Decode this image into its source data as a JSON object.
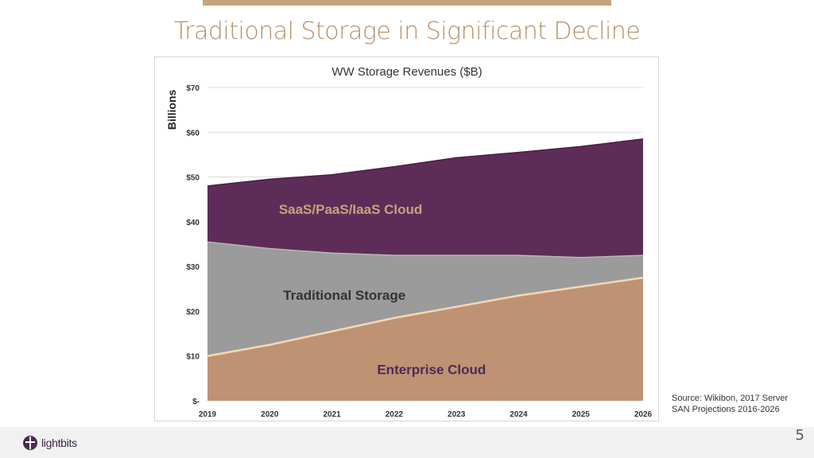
{
  "slide": {
    "title": "Traditional Storage in Significant Decline",
    "source_line1": "Source: Wikibon, 2017 Server",
    "source_line2": "SAN Projections 2016-2026",
    "page_number": "5",
    "logo_text": "lightbits"
  },
  "chart_data": {
    "type": "area",
    "stacked": true,
    "title": "WW Storage Revenues ($B)",
    "ylabel": "Billions",
    "xlabel": "",
    "x": [
      "2019",
      "2020",
      "2021",
      "2022",
      "2023",
      "2024",
      "2025",
      "2026"
    ],
    "ylim": [
      0,
      70
    ],
    "yticks": [
      0,
      10,
      20,
      30,
      40,
      50,
      60,
      70
    ],
    "ytick_labels": [
      "$-",
      "$10",
      "$20",
      "$30",
      "$40",
      "$50",
      "$60",
      "$70"
    ],
    "grid": true,
    "series": [
      {
        "name": "Enterprise Cloud",
        "values": [
          10,
          12.5,
          15.5,
          18.5,
          21,
          23.5,
          25.5,
          27.5
        ],
        "color": "#c09274",
        "label_color": "#4b2a55"
      },
      {
        "name": "Traditional Storage",
        "values": [
          25.5,
          21.5,
          17.5,
          14,
          11.5,
          9,
          6.5,
          5
        ],
        "color": "#9b9b9b",
        "label_color": "#333333"
      },
      {
        "name": "SaaS/PaaS/IaaS Cloud",
        "values": [
          12.5,
          15.5,
          17.5,
          19.8,
          21.8,
          23,
          24.8,
          26
        ],
        "color": "#5e2c58",
        "label_color": "#c9a27e"
      }
    ]
  }
}
